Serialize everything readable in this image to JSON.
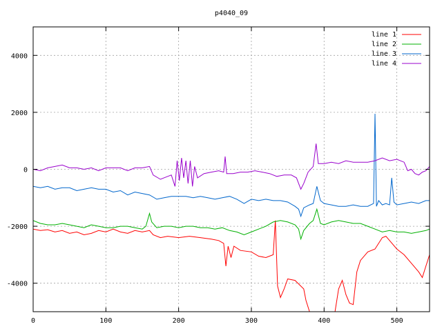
{
  "chart_data": {
    "type": "line",
    "title": "p4040_09",
    "xlabel": "",
    "ylabel": "",
    "xlim": [
      0,
      545
    ],
    "ylim": [
      -5000,
      5000
    ],
    "xticks": [
      0,
      100,
      200,
      300,
      400,
      500
    ],
    "yticks": [
      -4000,
      -2000,
      0,
      2000,
      4000
    ],
    "grid": true,
    "legend_position": "top-right",
    "series": [
      {
        "name": "line 1",
        "color": "#ff0000",
        "points": [
          [
            0,
            -2100
          ],
          [
            10,
            -2150
          ],
          [
            20,
            -2120
          ],
          [
            30,
            -2200
          ],
          [
            40,
            -2150
          ],
          [
            50,
            -2250
          ],
          [
            60,
            -2200
          ],
          [
            70,
            -2300
          ],
          [
            80,
            -2250
          ],
          [
            90,
            -2150
          ],
          [
            100,
            -2200
          ],
          [
            110,
            -2100
          ],
          [
            120,
            -2200
          ],
          [
            130,
            -2250
          ],
          [
            140,
            -2150
          ],
          [
            150,
            -2200
          ],
          [
            160,
            -2150
          ],
          [
            165,
            -2300
          ],
          [
            175,
            -2400
          ],
          [
            185,
            -2350
          ],
          [
            200,
            -2400
          ],
          [
            215,
            -2350
          ],
          [
            230,
            -2400
          ],
          [
            245,
            -2450
          ],
          [
            255,
            -2500
          ],
          [
            262,
            -2600
          ],
          [
            265,
            -3400
          ],
          [
            268,
            -2700
          ],
          [
            272,
            -3100
          ],
          [
            276,
            -2700
          ],
          [
            285,
            -2850
          ],
          [
            300,
            -2900
          ],
          [
            310,
            -3050
          ],
          [
            320,
            -3100
          ],
          [
            330,
            -3000
          ],
          [
            333,
            -1800
          ],
          [
            336,
            -4100
          ],
          [
            340,
            -4500
          ],
          [
            345,
            -4200
          ],
          [
            350,
            -3850
          ],
          [
            360,
            -3900
          ],
          [
            372,
            -4200
          ],
          [
            375,
            -4600
          ],
          [
            380,
            -5000
          ],
          [
            385,
            -5200
          ],
          [
            400,
            -5300
          ],
          [
            415,
            -5000
          ],
          [
            420,
            -4200
          ],
          [
            425,
            -3900
          ],
          [
            430,
            -4400
          ],
          [
            435,
            -4700
          ],
          [
            440,
            -4750
          ],
          [
            445,
            -3600
          ],
          [
            450,
            -3200
          ],
          [
            460,
            -2900
          ],
          [
            470,
            -2800
          ],
          [
            480,
            -2400
          ],
          [
            485,
            -2350
          ],
          [
            490,
            -2500
          ],
          [
            500,
            -2800
          ],
          [
            510,
            -3000
          ],
          [
            520,
            -3300
          ],
          [
            530,
            -3600
          ],
          [
            535,
            -3800
          ],
          [
            540,
            -3400
          ],
          [
            545,
            -3000
          ]
        ]
      },
      {
        "name": "line 2",
        "color": "#00b000",
        "points": [
          [
            0,
            -1800
          ],
          [
            10,
            -1900
          ],
          [
            20,
            -1950
          ],
          [
            30,
            -1950
          ],
          [
            40,
            -1900
          ],
          [
            50,
            -1950
          ],
          [
            60,
            -2000
          ],
          [
            70,
            -2050
          ],
          [
            80,
            -1950
          ],
          [
            90,
            -2000
          ],
          [
            100,
            -2050
          ],
          [
            110,
            -2050
          ],
          [
            120,
            -2000
          ],
          [
            130,
            -2000
          ],
          [
            140,
            -2050
          ],
          [
            150,
            -2100
          ],
          [
            155,
            -2000
          ],
          [
            160,
            -1550
          ],
          [
            163,
            -1850
          ],
          [
            170,
            -2050
          ],
          [
            180,
            -2000
          ],
          [
            190,
            -2000
          ],
          [
            200,
            -2050
          ],
          [
            210,
            -2000
          ],
          [
            220,
            -2000
          ],
          [
            230,
            -2050
          ],
          [
            240,
            -2050
          ],
          [
            250,
            -2100
          ],
          [
            260,
            -2050
          ],
          [
            270,
            -2150
          ],
          [
            280,
            -2200
          ],
          [
            290,
            -2300
          ],
          [
            300,
            -2200
          ],
          [
            310,
            -2100
          ],
          [
            320,
            -2000
          ],
          [
            330,
            -1850
          ],
          [
            340,
            -1800
          ],
          [
            350,
            -1850
          ],
          [
            360,
            -1950
          ],
          [
            365,
            -2100
          ],
          [
            368,
            -2450
          ],
          [
            372,
            -2150
          ],
          [
            380,
            -1900
          ],
          [
            385,
            -1800
          ],
          [
            390,
            -1400
          ],
          [
            395,
            -1900
          ],
          [
            400,
            -1950
          ],
          [
            410,
            -1850
          ],
          [
            420,
            -1800
          ],
          [
            430,
            -1850
          ],
          [
            440,
            -1900
          ],
          [
            450,
            -1900
          ],
          [
            460,
            -2000
          ],
          [
            470,
            -2100
          ],
          [
            480,
            -2200
          ],
          [
            490,
            -2150
          ],
          [
            500,
            -2200
          ],
          [
            510,
            -2200
          ],
          [
            520,
            -2250
          ],
          [
            530,
            -2200
          ],
          [
            540,
            -2150
          ],
          [
            545,
            -2100
          ]
        ]
      },
      {
        "name": "line 3",
        "color": "#0066cc",
        "points": [
          [
            0,
            -600
          ],
          [
            10,
            -650
          ],
          [
            20,
            -600
          ],
          [
            30,
            -700
          ],
          [
            40,
            -650
          ],
          [
            50,
            -650
          ],
          [
            60,
            -750
          ],
          [
            70,
            -700
          ],
          [
            80,
            -650
          ],
          [
            90,
            -700
          ],
          [
            100,
            -700
          ],
          [
            110,
            -800
          ],
          [
            120,
            -750
          ],
          [
            130,
            -900
          ],
          [
            140,
            -800
          ],
          [
            150,
            -850
          ],
          [
            160,
            -900
          ],
          [
            170,
            -1050
          ],
          [
            180,
            -1000
          ],
          [
            190,
            -950
          ],
          [
            200,
            -950
          ],
          [
            210,
            -950
          ],
          [
            220,
            -1000
          ],
          [
            230,
            -950
          ],
          [
            240,
            -1000
          ],
          [
            250,
            -1050
          ],
          [
            260,
            -1000
          ],
          [
            270,
            -950
          ],
          [
            280,
            -1050
          ],
          [
            290,
            -1200
          ],
          [
            300,
            -1050
          ],
          [
            310,
            -1100
          ],
          [
            320,
            -1050
          ],
          [
            330,
            -1100
          ],
          [
            340,
            -1100
          ],
          [
            350,
            -1150
          ],
          [
            360,
            -1300
          ],
          [
            365,
            -1400
          ],
          [
            368,
            -1650
          ],
          [
            372,
            -1350
          ],
          [
            380,
            -1250
          ],
          [
            385,
            -1200
          ],
          [
            390,
            -600
          ],
          [
            395,
            -1100
          ],
          [
            400,
            -1200
          ],
          [
            410,
            -1250
          ],
          [
            420,
            -1300
          ],
          [
            430,
            -1300
          ],
          [
            440,
            -1250
          ],
          [
            450,
            -1300
          ],
          [
            460,
            -1300
          ],
          [
            468,
            -1200
          ],
          [
            470,
            1950
          ],
          [
            472,
            -1300
          ],
          [
            475,
            -1100
          ],
          [
            480,
            -1250
          ],
          [
            485,
            -1200
          ],
          [
            490,
            -1250
          ],
          [
            493,
            -300
          ],
          [
            496,
            -1150
          ],
          [
            500,
            -1250
          ],
          [
            510,
            -1200
          ],
          [
            520,
            -1150
          ],
          [
            530,
            -1200
          ],
          [
            540,
            -1100
          ],
          [
            545,
            -1100
          ]
        ]
      },
      {
        "name": "line 4",
        "color": "#9900cc",
        "points": [
          [
            0,
            0
          ],
          [
            10,
            -50
          ],
          [
            20,
            50
          ],
          [
            30,
            100
          ],
          [
            40,
            150
          ],
          [
            50,
            50
          ],
          [
            60,
            50
          ],
          [
            70,
            0
          ],
          [
            80,
            50
          ],
          [
            90,
            -50
          ],
          [
            100,
            50
          ],
          [
            110,
            50
          ],
          [
            120,
            50
          ],
          [
            130,
            -50
          ],
          [
            140,
            50
          ],
          [
            150,
            50
          ],
          [
            160,
            100
          ],
          [
            165,
            -200
          ],
          [
            175,
            -350
          ],
          [
            185,
            -250
          ],
          [
            190,
            -200
          ],
          [
            195,
            -600
          ],
          [
            198,
            300
          ],
          [
            201,
            -400
          ],
          [
            204,
            400
          ],
          [
            207,
            -300
          ],
          [
            210,
            300
          ],
          [
            213,
            -500
          ],
          [
            216,
            300
          ],
          [
            219,
            -600
          ],
          [
            222,
            100
          ],
          [
            226,
            -300
          ],
          [
            235,
            -150
          ],
          [
            245,
            -100
          ],
          [
            255,
            -50
          ],
          [
            262,
            -100
          ],
          [
            264,
            450
          ],
          [
            266,
            -150
          ],
          [
            275,
            -150
          ],
          [
            285,
            -100
          ],
          [
            295,
            -100
          ],
          [
            305,
            -50
          ],
          [
            315,
            -100
          ],
          [
            325,
            -150
          ],
          [
            335,
            -250
          ],
          [
            345,
            -200
          ],
          [
            355,
            -200
          ],
          [
            362,
            -300
          ],
          [
            368,
            -700
          ],
          [
            372,
            -500
          ],
          [
            378,
            -100
          ],
          [
            385,
            100
          ],
          [
            389,
            900
          ],
          [
            392,
            200
          ],
          [
            400,
            200
          ],
          [
            410,
            250
          ],
          [
            420,
            200
          ],
          [
            430,
            300
          ],
          [
            440,
            250
          ],
          [
            450,
            250
          ],
          [
            460,
            250
          ],
          [
            470,
            300
          ],
          [
            480,
            400
          ],
          [
            490,
            300
          ],
          [
            500,
            350
          ],
          [
            510,
            250
          ],
          [
            515,
            -50
          ],
          [
            520,
            0
          ],
          [
            525,
            -150
          ],
          [
            530,
            -200
          ],
          [
            535,
            -100
          ],
          [
            540,
            -50
          ],
          [
            545,
            100
          ]
        ]
      }
    ]
  }
}
